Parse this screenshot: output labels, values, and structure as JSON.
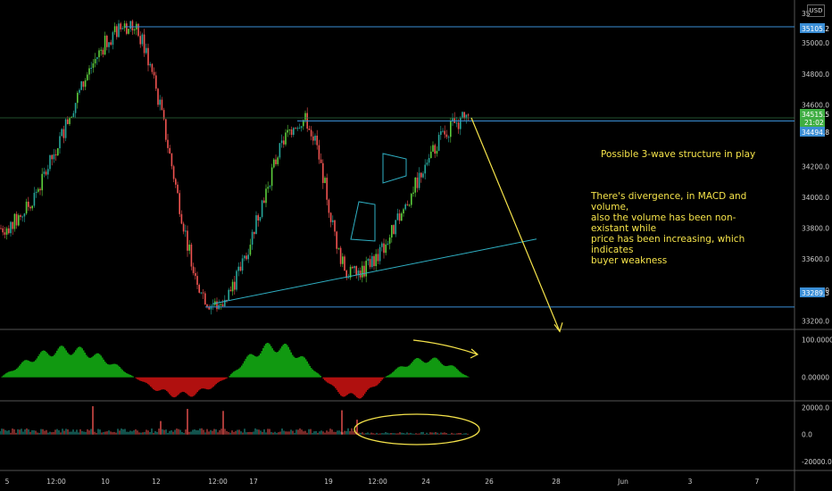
{
  "colors": {
    "background": "#000000",
    "up": "#26a69a",
    "down": "#ef5350",
    "bull_bright": "#5ccc3c",
    "level_line": "#3a8ed6",
    "trend_line": "#2fb0c4",
    "annotation": "#f5e34a",
    "macd_pos": "#119911",
    "macd_neg": "#b0100f",
    "axis_text": "#cccccc"
  },
  "currency_label": "USD",
  "annotations": {
    "structure": "Possible 3-wave structure in play",
    "divergence_lines": [
      "There's divergence, in MACD and volume,",
      "also the volume has been non-existant while",
      "price has been increasing, which indicates",
      "buyer weakness"
    ]
  },
  "price_labels": {
    "top_partial": "35",
    "resistance": "35105.2",
    "current": "34515.5",
    "countdown": "21:02",
    "mid_level": "34494.8",
    "support": "33289.3"
  },
  "chart_data": [
    {
      "type": "candlestick",
      "title": "",
      "x_tick_labels": [
        "5",
        "12:00",
        "10",
        "12",
        "12:00",
        "17",
        "19",
        "12:00",
        "24",
        "26",
        "28",
        "Jun",
        "3",
        "7"
      ],
      "y_ticks": [
        35000,
        34800,
        34600,
        34200,
        34000,
        33800,
        33600,
        33400,
        33200
      ],
      "ylim": [
        33150,
        35250
      ],
      "horizontal_levels": [
        35105.2,
        34494.8,
        33289.3
      ],
      "key_points": [
        {
          "label": "start",
          "price": 33800
        },
        {
          "label": "peak",
          "price": 35105
        },
        {
          "label": "low",
          "price": 33300
        },
        {
          "label": "high",
          "price": 34500
        },
        {
          "label": "low2",
          "price": 33500
        },
        {
          "label": "current",
          "price": 34515.5
        }
      ],
      "projection_target": 33200
    },
    {
      "type": "bar",
      "title": "",
      "indicator": "MACD histogram",
      "y_ticks": [
        "100.00000",
        "0.00000"
      ],
      "ylim": [
        -60,
        120
      ],
      "segments": [
        {
          "label": "green_1",
          "peak": 85
        },
        {
          "label": "red_1",
          "trough": -55
        },
        {
          "label": "green_2",
          "peak": 95
        },
        {
          "label": "red_2",
          "trough": -60
        },
        {
          "label": "green_3",
          "peak": 55
        }
      ]
    },
    {
      "type": "bar",
      "title": "",
      "indicator": "Volume",
      "y_ticks": [
        "20000.0",
        "0.0",
        "-20000.0"
      ],
      "ylim": [
        -26000,
        23000
      ],
      "spikes": [
        21000,
        19000,
        17500,
        18000,
        11000,
        10000
      ]
    }
  ]
}
